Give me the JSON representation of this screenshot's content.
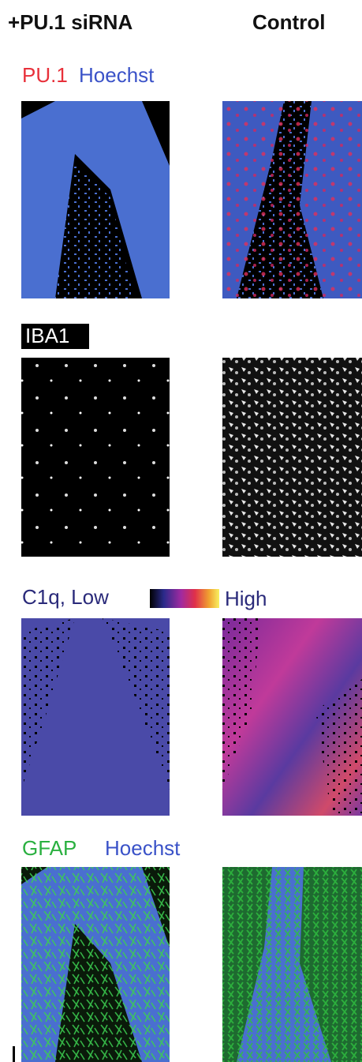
{
  "columns": [
    "+PU.1 siRNA",
    "Control"
  ],
  "rows": [
    {
      "labels": [
        "PU.1",
        "Hoechst"
      ]
    },
    {
      "labels": [
        "IBA1"
      ]
    },
    {
      "labels": [
        "C1q, Low",
        "High"
      ]
    },
    {
      "labels": [
        "GFAP",
        "Hoechst"
      ]
    }
  ]
}
